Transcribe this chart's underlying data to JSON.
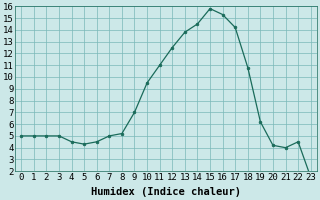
{
  "x": [
    0,
    1,
    2,
    3,
    4,
    5,
    6,
    7,
    8,
    9,
    10,
    11,
    12,
    13,
    14,
    15,
    16,
    17,
    18,
    19,
    20,
    21,
    22,
    23
  ],
  "y": [
    5.0,
    5.0,
    5.0,
    5.0,
    4.5,
    4.3,
    4.5,
    5.0,
    5.2,
    7.0,
    9.5,
    11.0,
    12.5,
    13.8,
    14.5,
    15.8,
    15.3,
    14.2,
    10.8,
    6.2,
    4.2,
    4.0,
    4.5,
    1.5
  ],
  "xlabel": "Humidex (Indice chaleur)",
  "ylim": [
    2,
    16
  ],
  "xlim": [
    -0.5,
    23.5
  ],
  "line_color": "#1a6b5a",
  "marker_color": "#1a6b5a",
  "bg_color": "#cce8e8",
  "grid_color": "#7ab8b8",
  "xlabel_fontsize": 7.5,
  "tick_fontsize": 6.5,
  "ytick_min": 2,
  "ytick_max": 16
}
